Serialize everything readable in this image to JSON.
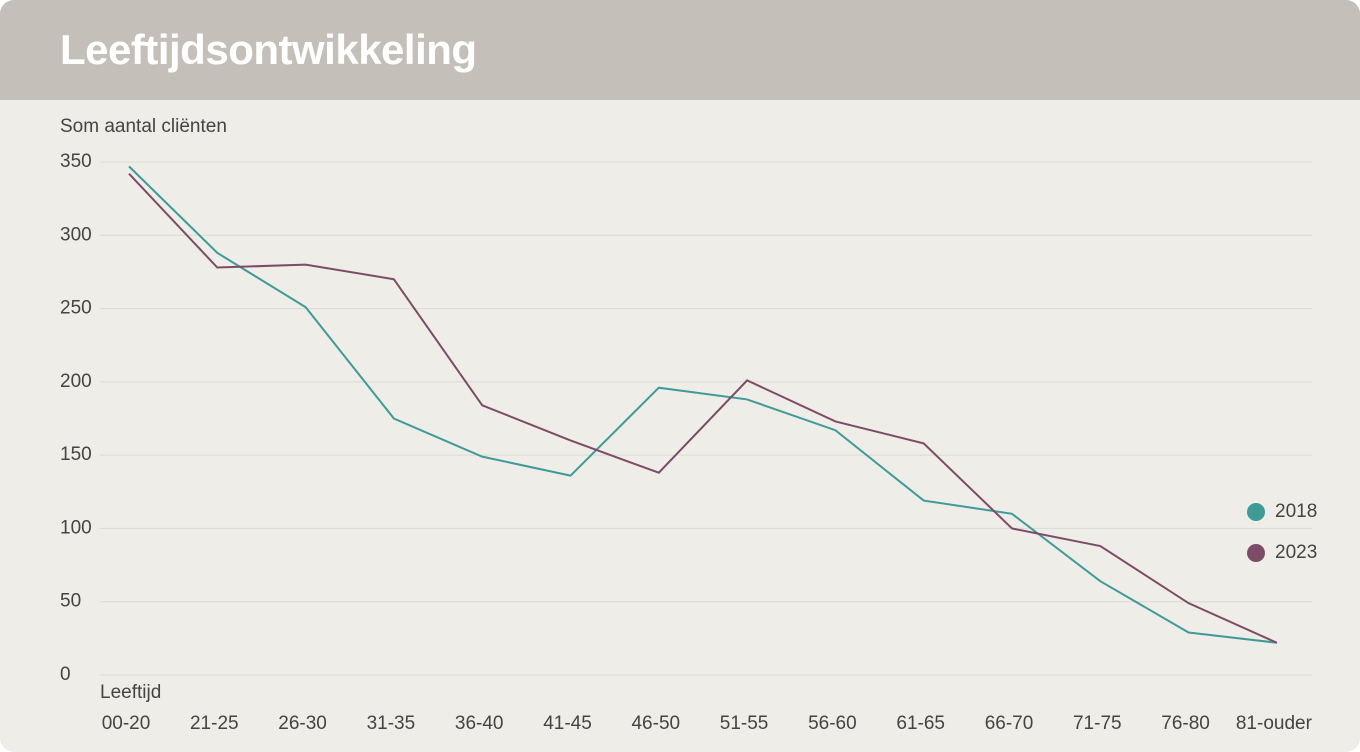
{
  "header": {
    "title": "Leeftijdsontwikkeling"
  },
  "chart_data": {
    "type": "line",
    "y_label": "Som aantal cliënten",
    "x_label": "Leeftijd",
    "categories": [
      "00-20",
      "21-25",
      "26-30",
      "31-35",
      "36-40",
      "41-45",
      "46-50",
      "51-55",
      "56-60",
      "61-65",
      "66-70",
      "71-75",
      "76-80",
      "81-ouder"
    ],
    "series": [
      {
        "name": "2018",
        "color": "#3f9a98",
        "values": [
          347,
          288,
          251,
          175,
          149,
          136,
          196,
          188,
          167,
          119,
          110,
          64,
          29,
          22
        ]
      },
      {
        "name": "2023",
        "color": "#7d4b68",
        "values": [
          342,
          278,
          280,
          270,
          184,
          160,
          138,
          201,
          173,
          158,
          100,
          88,
          49,
          22
        ]
      }
    ],
    "ylim": [
      0,
      350
    ],
    "yticks": [
      0,
      50,
      100,
      150,
      200,
      250,
      300,
      350
    ],
    "grid": true
  }
}
